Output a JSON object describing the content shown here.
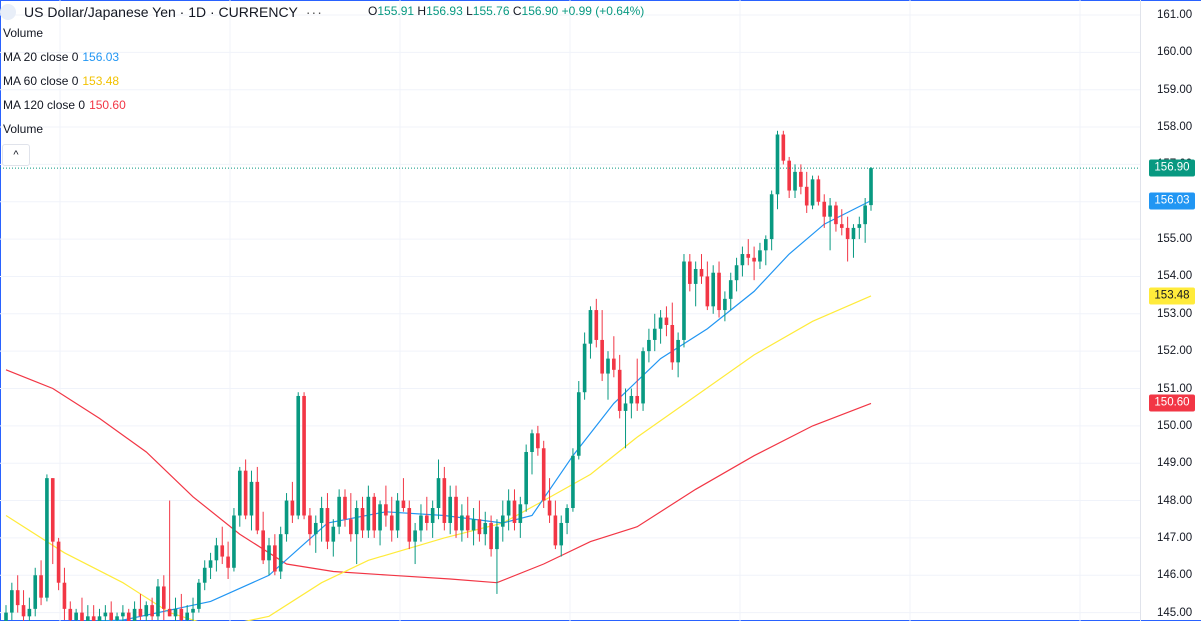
{
  "title": "US Dollar/Japanese Yen · 1D · CURRENCY",
  "more_glyph": "···",
  "ohlc": {
    "o_label": "O",
    "o": "155.91",
    "h_label": "H",
    "h": "156.93",
    "l_label": "L",
    "l": "155.76",
    "c_label": "C",
    "c": "156.90",
    "change": "+0.99 (+0.64%)"
  },
  "legend": {
    "volume_top": "Volume",
    "ma20_label": "MA 20 close 0",
    "ma20_value": "156.03",
    "ma60_label": "MA 60 close 0",
    "ma60_value": "153.48",
    "ma120_label": "MA 120 close 0",
    "ma120_value": "150.60",
    "volume_bottom": "Volume",
    "collapse_glyph": "^"
  },
  "colors": {
    "up": "#089981",
    "down": "#f23645",
    "ma20": "#2196f3",
    "ma60": "#ffeb3b",
    "ma120": "#f23645",
    "price_tag": "#089981"
  },
  "axis": {
    "ticks": [
      "161.00",
      "160.00",
      "159.00",
      "158.00",
      "157.00",
      "156.00",
      "155.00",
      "154.00",
      "153.00",
      "152.00",
      "151.00",
      "150.00",
      "149.00",
      "148.00",
      "147.00",
      "146.00",
      "145.00"
    ],
    "price_tag": "156.90",
    "ma20_tag": "156.03",
    "ma60_tag": "153.48",
    "ma120_tag": "150.60"
  },
  "chart_data": {
    "type": "candlestick",
    "ylim": [
      144.9,
      161.3
    ],
    "grid": true,
    "candles": [
      [
        144.6,
        145.2,
        144.4,
        145.0
      ],
      [
        145.0,
        145.8,
        144.8,
        145.6
      ],
      [
        145.6,
        146.0,
        145.0,
        145.2
      ],
      [
        145.2,
        145.6,
        144.6,
        144.9
      ],
      [
        144.9,
        145.4,
        144.5,
        145.1
      ],
      [
        145.1,
        146.2,
        144.9,
        146.0
      ],
      [
        146.0,
        146.4,
        145.2,
        145.4
      ],
      [
        145.4,
        148.7,
        145.3,
        148.6
      ],
      [
        148.6,
        148.6,
        146.3,
        146.9
      ],
      [
        146.9,
        147.0,
        145.6,
        145.8
      ],
      [
        145.8,
        146.2,
        144.8,
        145.1
      ],
      [
        145.1,
        145.3,
        144.6,
        144.8
      ],
      [
        144.8,
        145.1,
        144.5,
        145.0
      ],
      [
        145.0,
        145.4,
        144.6,
        144.7
      ],
      [
        144.7,
        145.2,
        144.5,
        144.9
      ],
      [
        144.9,
        145.2,
        144.3,
        144.6
      ],
      [
        144.6,
        145.1,
        144.5,
        144.9
      ],
      [
        144.9,
        145.2,
        144.6,
        145.0
      ],
      [
        145.0,
        145.3,
        144.7,
        144.8
      ],
      [
        144.8,
        145.0,
        144.6,
        144.9
      ],
      [
        144.9,
        145.2,
        144.7,
        145.0
      ],
      [
        145.0,
        145.1,
        144.6,
        144.7
      ],
      [
        144.7,
        145.3,
        144.6,
        145.1
      ],
      [
        145.1,
        145.5,
        144.8,
        144.9
      ],
      [
        144.9,
        145.3,
        144.7,
        145.2
      ],
      [
        145.2,
        145.4,
        144.8,
        144.9
      ],
      [
        144.9,
        145.9,
        144.8,
        145.7
      ],
      [
        145.7,
        146.0,
        144.8,
        145.1
      ],
      [
        145.1,
        148.0,
        144.9,
        144.9
      ],
      [
        144.9,
        145.4,
        144.5,
        145.1
      ],
      [
        145.1,
        145.5,
        144.7,
        144.8
      ],
      [
        144.8,
        145.2,
        144.6,
        145.0
      ],
      [
        145.0,
        145.4,
        144.7,
        145.1
      ],
      [
        145.1,
        145.9,
        145.0,
        145.8
      ],
      [
        145.8,
        146.4,
        145.6,
        146.2
      ],
      [
        146.2,
        146.6,
        145.9,
        146.4
      ],
      [
        146.4,
        147.0,
        146.1,
        146.8
      ],
      [
        146.8,
        147.3,
        146.3,
        146.5
      ],
      [
        146.5,
        146.9,
        145.9,
        146.2
      ],
      [
        146.2,
        147.8,
        146.1,
        147.6
      ],
      [
        147.6,
        148.9,
        147.3,
        148.8
      ],
      [
        148.8,
        149.1,
        147.5,
        147.6
      ],
      [
        147.6,
        148.8,
        147.2,
        148.5
      ],
      [
        148.5,
        148.9,
        147.1,
        147.2
      ],
      [
        147.2,
        147.7,
        146.3,
        146.4
      ],
      [
        146.4,
        147.0,
        146.0,
        146.8
      ],
      [
        146.8,
        147.1,
        146.0,
        146.1
      ],
      [
        146.1,
        147.3,
        145.9,
        147.1
      ],
      [
        147.1,
        148.2,
        146.9,
        148.0
      ],
      [
        148.0,
        148.5,
        147.4,
        147.6
      ],
      [
        147.6,
        150.9,
        147.5,
        150.8
      ],
      [
        150.8,
        150.9,
        147.5,
        147.6
      ],
      [
        147.6,
        147.8,
        146.8,
        147.1
      ],
      [
        147.1,
        147.6,
        146.6,
        147.4
      ],
      [
        147.4,
        148.1,
        146.9,
        147.8
      ],
      [
        147.8,
        148.2,
        146.7,
        146.9
      ],
      [
        146.9,
        147.5,
        146.5,
        147.3
      ],
      [
        147.3,
        148.3,
        147.1,
        148.1
      ],
      [
        148.1,
        148.3,
        147.3,
        147.5
      ],
      [
        147.5,
        148.2,
        146.9,
        147.1
      ],
      [
        147.1,
        148.0,
        146.3,
        147.8
      ],
      [
        147.8,
        148.1,
        147.0,
        147.2
      ],
      [
        147.2,
        148.4,
        147.0,
        148.1
      ],
      [
        148.1,
        148.2,
        147.0,
        147.2
      ],
      [
        147.2,
        148.0,
        146.8,
        147.9
      ],
      [
        147.9,
        148.4,
        147.3,
        147.6
      ],
      [
        147.6,
        148.1,
        146.9,
        147.2
      ],
      [
        147.2,
        148.2,
        147.0,
        148.0
      ],
      [
        148.0,
        148.6,
        147.7,
        147.8
      ],
      [
        147.8,
        148.0,
        146.7,
        146.9
      ],
      [
        146.9,
        147.4,
        146.3,
        147.2
      ],
      [
        147.2,
        147.9,
        146.9,
        147.6
      ],
      [
        147.6,
        148.1,
        147.2,
        147.4
      ],
      [
        147.4,
        148.0,
        147.0,
        147.8
      ],
      [
        147.8,
        149.1,
        147.5,
        148.6
      ],
      [
        148.6,
        148.9,
        147.2,
        147.4
      ],
      [
        147.4,
        148.4,
        147.1,
        148.1
      ],
      [
        148.1,
        148.4,
        147.0,
        147.2
      ],
      [
        147.2,
        147.9,
        146.9,
        147.6
      ],
      [
        147.6,
        148.1,
        147.0,
        147.2
      ],
      [
        147.2,
        147.8,
        146.8,
        147.5
      ],
      [
        147.5,
        148.0,
        146.9,
        147.1
      ],
      [
        147.1,
        147.7,
        146.8,
        147.4
      ],
      [
        147.4,
        147.6,
        146.5,
        146.7
      ],
      [
        146.7,
        147.5,
        145.5,
        147.3
      ],
      [
        147.3,
        148.0,
        146.9,
        147.6
      ],
      [
        147.6,
        148.3,
        147.2,
        148.0
      ],
      [
        148.0,
        148.3,
        147.2,
        147.4
      ],
      [
        147.4,
        148.1,
        147.0,
        147.9
      ],
      [
        147.9,
        149.5,
        147.7,
        149.3
      ],
      [
        149.3,
        149.9,
        148.7,
        149.8
      ],
      [
        149.8,
        150.0,
        149.2,
        149.4
      ],
      [
        149.4,
        149.6,
        147.8,
        148.0
      ],
      [
        148.0,
        148.6,
        147.4,
        147.6
      ],
      [
        147.6,
        148.0,
        146.7,
        146.8
      ],
      [
        146.8,
        147.6,
        146.5,
        147.4
      ],
      [
        147.4,
        147.9,
        147.1,
        147.8
      ],
      [
        147.8,
        149.4,
        147.7,
        149.2
      ],
      [
        149.2,
        151.2,
        149.1,
        150.9
      ],
      [
        150.9,
        152.5,
        150.7,
        152.2
      ],
      [
        152.2,
        153.2,
        151.8,
        153.1
      ],
      [
        153.1,
        153.4,
        152.1,
        152.3
      ],
      [
        152.3,
        153.1,
        151.2,
        151.4
      ],
      [
        151.4,
        152.0,
        150.7,
        151.8
      ],
      [
        151.8,
        152.4,
        151.3,
        151.5
      ],
      [
        151.5,
        151.9,
        150.2,
        150.4
      ],
      [
        150.4,
        151.0,
        149.4,
        150.6
      ],
      [
        150.6,
        151.0,
        150.2,
        150.8
      ],
      [
        150.8,
        151.8,
        150.4,
        150.6
      ],
      [
        150.6,
        152.1,
        150.4,
        152.0
      ],
      [
        152.0,
        152.6,
        151.7,
        152.3
      ],
      [
        152.3,
        153.0,
        152.0,
        152.6
      ],
      [
        152.6,
        153.1,
        152.2,
        152.9
      ],
      [
        152.9,
        153.2,
        152.4,
        152.7
      ],
      [
        152.7,
        153.3,
        151.5,
        151.7
      ],
      [
        151.7,
        152.5,
        151.3,
        152.3
      ],
      [
        152.3,
        154.6,
        152.1,
        154.4
      ],
      [
        154.4,
        154.6,
        153.6,
        153.8
      ],
      [
        153.8,
        154.4,
        153.2,
        154.2
      ],
      [
        154.2,
        154.6,
        153.8,
        154.0
      ],
      [
        154.0,
        154.4,
        153.1,
        153.2
      ],
      [
        153.2,
        154.3,
        153.0,
        154.1
      ],
      [
        154.1,
        154.4,
        152.9,
        153.1
      ],
      [
        153.1,
        153.6,
        152.8,
        153.4
      ],
      [
        153.4,
        154.1,
        153.1,
        153.9
      ],
      [
        153.9,
        154.5,
        153.6,
        154.3
      ],
      [
        154.3,
        154.8,
        154.0,
        154.6
      ],
      [
        154.6,
        155.0,
        154.3,
        154.5
      ],
      [
        154.5,
        154.8,
        153.9,
        154.4
      ],
      [
        154.4,
        154.9,
        154.2,
        154.7
      ],
      [
        154.7,
        155.1,
        154.3,
        155.0
      ],
      [
        155.0,
        156.3,
        154.7,
        156.2
      ],
      [
        156.2,
        157.9,
        155.8,
        157.8
      ],
      [
        157.8,
        157.9,
        157.0,
        157.1
      ],
      [
        157.1,
        157.2,
        156.1,
        156.3
      ],
      [
        156.3,
        157.0,
        156.1,
        156.8
      ],
      [
        156.8,
        157.0,
        156.2,
        156.4
      ],
      [
        156.4,
        156.8,
        155.7,
        155.9
      ],
      [
        155.9,
        156.7,
        155.8,
        156.6
      ],
      [
        156.6,
        156.7,
        155.9,
        156.0
      ],
      [
        156.0,
        156.2,
        155.3,
        155.6
      ],
      [
        155.6,
        156.1,
        154.7,
        155.9
      ],
      [
        155.9,
        156.0,
        155.2,
        155.4
      ],
      [
        155.4,
        155.8,
        155.1,
        155.3
      ],
      [
        155.3,
        155.6,
        154.4,
        155.0
      ],
      [
        155.0,
        155.4,
        154.5,
        155.3
      ],
      [
        155.3,
        155.6,
        155.0,
        155.4
      ],
      [
        155.4,
        156.1,
        154.9,
        155.9
      ],
      [
        155.91,
        156.93,
        155.76,
        156.9
      ]
    ],
    "ma20": [
      [
        0,
        144.7
      ],
      [
        20,
        144.8
      ],
      [
        35,
        145.3
      ],
      [
        45,
        146.0
      ],
      [
        55,
        147.4
      ],
      [
        65,
        147.7
      ],
      [
        75,
        147.6
      ],
      [
        85,
        147.4
      ],
      [
        90,
        147.6
      ],
      [
        97,
        149.2
      ],
      [
        104,
        150.6
      ],
      [
        112,
        151.8
      ],
      [
        120,
        152.6
      ],
      [
        128,
        153.6
      ],
      [
        134,
        154.6
      ],
      [
        140,
        155.4
      ],
      [
        148,
        156.03
      ]
    ],
    "ma60": [
      [
        0,
        147.6
      ],
      [
        10,
        146.6
      ],
      [
        20,
        145.8
      ],
      [
        28,
        145.0
      ],
      [
        36,
        144.6
      ],
      [
        45,
        144.9
      ],
      [
        54,
        145.8
      ],
      [
        62,
        146.4
      ],
      [
        75,
        147.0
      ],
      [
        85,
        147.4
      ],
      [
        92,
        148.0
      ],
      [
        100,
        148.7
      ],
      [
        108,
        149.7
      ],
      [
        118,
        150.8
      ],
      [
        128,
        151.9
      ],
      [
        138,
        152.8
      ],
      [
        148,
        153.48
      ]
    ],
    "ma120": [
      [
        0,
        151.5
      ],
      [
        8,
        151.0
      ],
      [
        16,
        150.2
      ],
      [
        24,
        149.3
      ],
      [
        32,
        148.1
      ],
      [
        40,
        147.1
      ],
      [
        48,
        146.3
      ],
      [
        56,
        146.1
      ],
      [
        66,
        146.0
      ],
      [
        76,
        145.9
      ],
      [
        84,
        145.8
      ],
      [
        92,
        146.3
      ],
      [
        100,
        146.9
      ],
      [
        108,
        147.3
      ],
      [
        118,
        148.3
      ],
      [
        128,
        149.2
      ],
      [
        138,
        150.0
      ],
      [
        148,
        150.6
      ]
    ]
  }
}
